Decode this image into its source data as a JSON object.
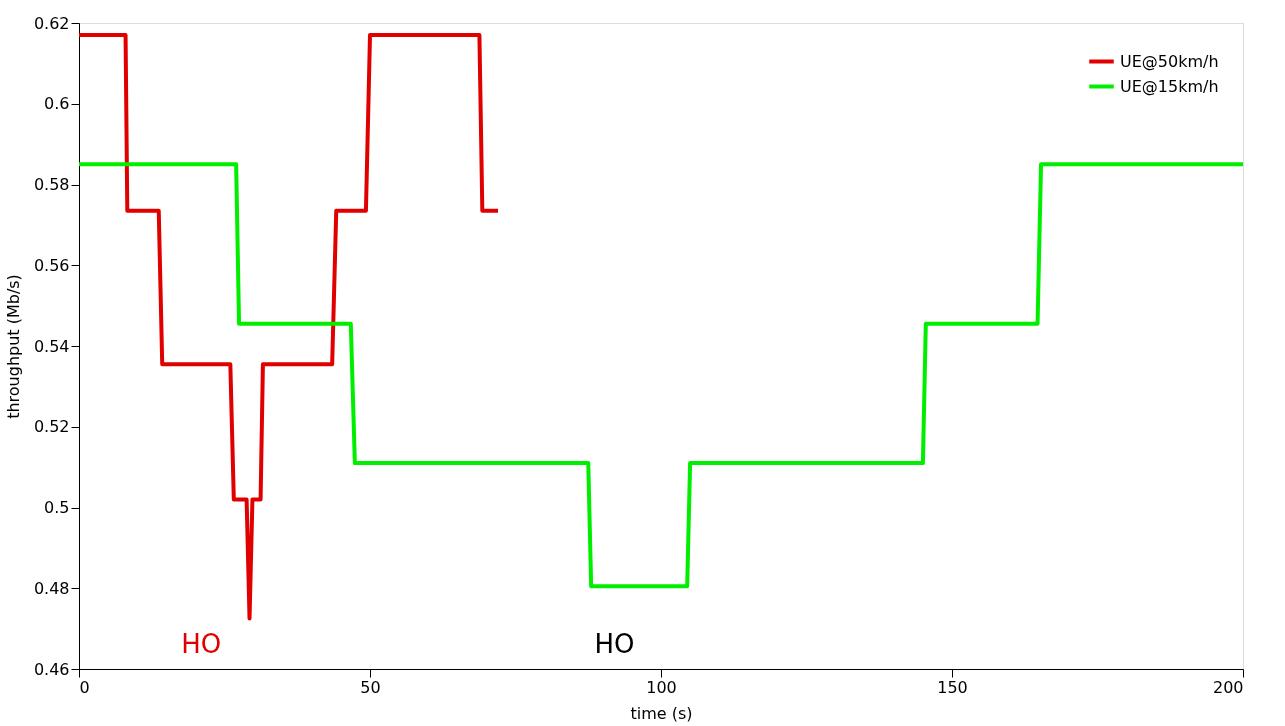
{
  "chart_data": {
    "type": "line",
    "xlabel": "time (s)",
    "ylabel": "throughput (Mb/s)",
    "xlim": [
      0,
      200
    ],
    "xticks": [
      0,
      50,
      100,
      150,
      200
    ],
    "ylim": [
      0.46,
      0.62
    ],
    "yticks": [
      0.46,
      0.48,
      0.5,
      0.52,
      0.54,
      0.56,
      0.58,
      0.6,
      0.62
    ],
    "grid": false,
    "legend": "top right",
    "marker": "none",
    "line_style": "solid",
    "series": [
      {
        "name": "UE@50km/h",
        "color": "#e00000",
        "x": [
          0,
          8,
          8.3,
          13.7,
          14.3,
          26,
          26.6,
          28.8,
          29.3,
          29.8,
          31.2,
          31.6,
          43.5,
          44.2,
          49.3,
          50,
          68.8,
          69.3,
          72
        ],
        "values": [
          0.617,
          0.617,
          0.5735,
          0.5735,
          0.5355,
          0.5355,
          0.502,
          0.502,
          0.4725,
          0.502,
          0.502,
          0.5355,
          0.5355,
          0.5735,
          0.5735,
          0.617,
          0.617,
          0.5735,
          0.5735
        ]
      },
      {
        "name": "UE@15km/h",
        "color": "#00ee00",
        "x": [
          0,
          27,
          27.5,
          46.7,
          47.4,
          87.5,
          88,
          104.5,
          105,
          145,
          145.5,
          164.7,
          165.3,
          200
        ],
        "values": [
          0.585,
          0.585,
          0.5455,
          0.5455,
          0.511,
          0.511,
          0.4805,
          0.4805,
          0.511,
          0.511,
          0.5455,
          0.5455,
          0.585,
          0.585
        ]
      }
    ],
    "annotations": [
      "HO",
      "HO"
    ]
  }
}
